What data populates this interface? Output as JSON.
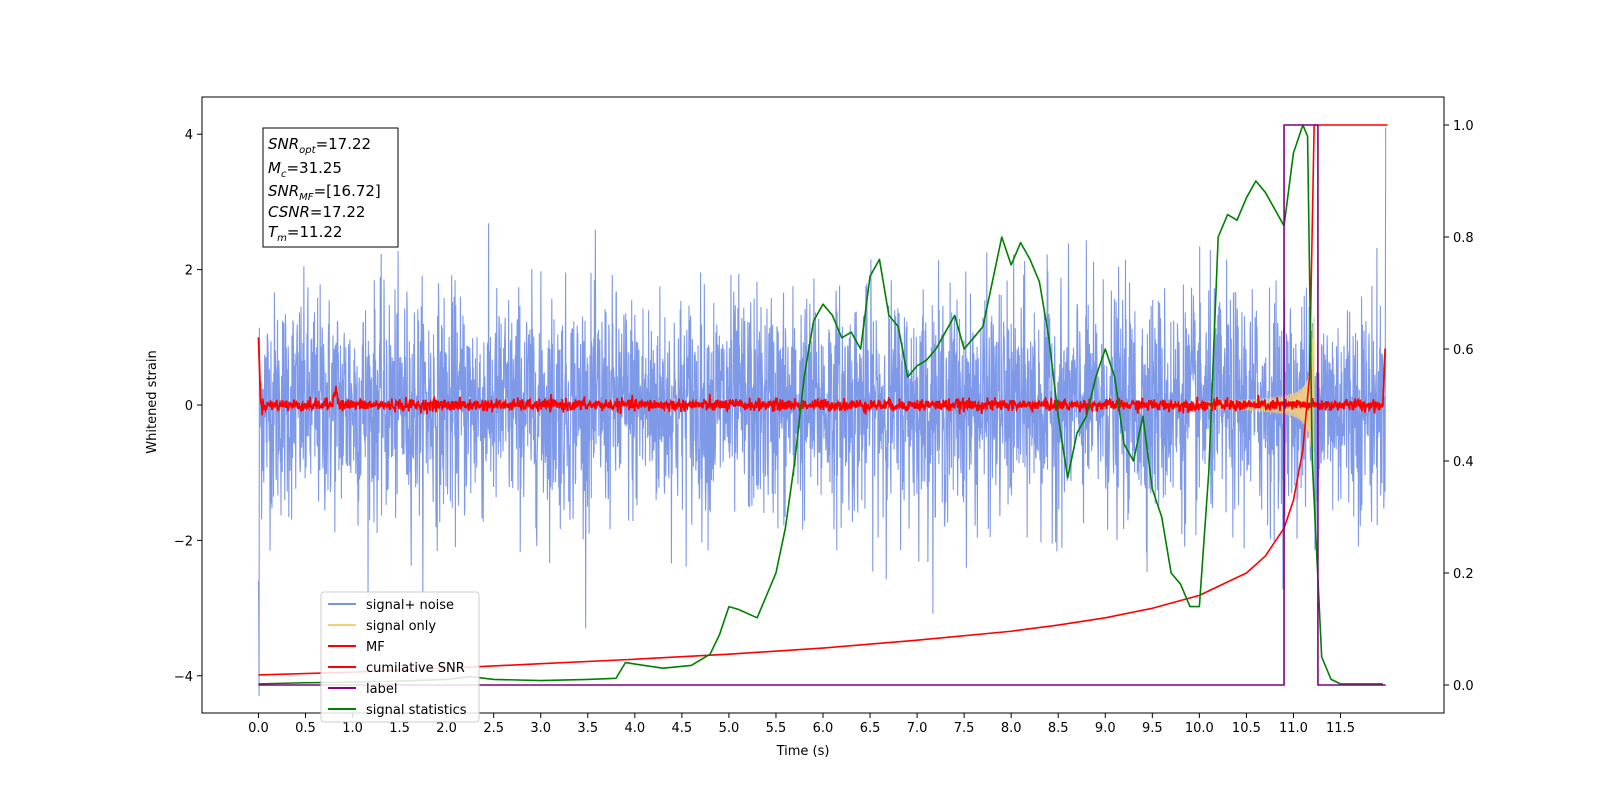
{
  "chart_data": {
    "type": "line",
    "xlabel": "Time (s)",
    "ylabel": "Whitened strain",
    "xlim": [
      -0.6,
      12.6
    ],
    "ylim": [
      -4.55,
      4.55
    ],
    "y2lim": [
      -0.05,
      1.05
    ],
    "grid": false,
    "legend_position": "lower-left",
    "x_ticks": [
      "0.0",
      "0.5",
      "1.0",
      "1.5",
      "2.0",
      "2.5",
      "3.0",
      "3.5",
      "4.0",
      "4.5",
      "5.0",
      "5.5",
      "6.0",
      "6.5",
      "7.0",
      "7.5",
      "8.0",
      "8.5",
      "9.0",
      "9.5",
      "10.0",
      "10.5",
      "11.0",
      "11.5"
    ],
    "y_ticks": [
      {
        "value": 4,
        "label": "4"
      },
      {
        "value": 2,
        "label": "2"
      },
      {
        "value": 0,
        "label": "0"
      },
      {
        "value": -2,
        "label": "−2"
      },
      {
        "value": -4,
        "label": "−4"
      }
    ],
    "y2_ticks": [
      "0.0",
      "0.2",
      "0.4",
      "0.6",
      "0.8",
      "1.0"
    ],
    "annotation": {
      "snr_opt": {
        "sym": "SNR",
        "sub": "opt",
        "value": "=17.22"
      },
      "mc": {
        "sym": "M",
        "sub": "c",
        "value": "=31.25"
      },
      "snr_mf": {
        "sym": "SNR",
        "sub": "MF",
        "value": "=[16.72]"
      },
      "csnr": {
        "sym": "CSNR",
        "value": "=17.22"
      },
      "tm": {
        "sym": "T",
        "sub": "m",
        "value": "=11.22"
      }
    },
    "series": [
      {
        "name": "signal+ noise",
        "color": "#7893e8",
        "axis": "left",
        "description": "whitened noisy strain, approx ±2.5 spread over 0–12 s"
      },
      {
        "name": "signal only",
        "color": "#f7cf7b",
        "axis": "left",
        "description": "chirp waveform growing near merger at ~11.2 s"
      },
      {
        "name": "MF",
        "color": "#ff0000",
        "axis": "left",
        "description": "matched filter output, near 0 with edge spikes to ~1"
      },
      {
        "name": "cumilative SNR",
        "color": "#ff0000",
        "axis": "right",
        "x": [
          0.0,
          1,
          2,
          3,
          4,
          5,
          6,
          7,
          8,
          8.5,
          9,
          9.5,
          10,
          10.5,
          10.7,
          10.9,
          11.0,
          11.1,
          11.17,
          11.22,
          11.3,
          12.0
        ],
        "values": [
          0.018,
          0.023,
          0.03,
          0.038,
          0.046,
          0.055,
          0.066,
          0.08,
          0.096,
          0.107,
          0.12,
          0.137,
          0.16,
          0.2,
          0.23,
          0.28,
          0.33,
          0.42,
          0.55,
          1.0,
          1.0,
          1.0
        ]
      },
      {
        "name": "label",
        "color": "#800080",
        "axis": "right",
        "x": [
          0.0,
          10.9,
          10.9,
          11.26,
          11.26,
          11.98
        ],
        "values": [
          0.0,
          0.0,
          1.0,
          1.0,
          0.0,
          0.0
        ]
      },
      {
        "name": "signal statistics",
        "color": "#008000",
        "axis": "right",
        "x": [
          0.0,
          0.5,
          1.0,
          1.5,
          2.0,
          2.25,
          2.5,
          3.0,
          3.5,
          3.8,
          3.9,
          4.1,
          4.3,
          4.6,
          4.8,
          4.9,
          5.0,
          5.1,
          5.3,
          5.5,
          5.6,
          5.7,
          5.8,
          5.9,
          6.0,
          6.1,
          6.2,
          6.3,
          6.4,
          6.5,
          6.6,
          6.7,
          6.8,
          6.9,
          7.0,
          7.1,
          7.2,
          7.3,
          7.4,
          7.5,
          7.6,
          7.7,
          7.8,
          7.9,
          8.0,
          8.1,
          8.2,
          8.3,
          8.4,
          8.5,
          8.6,
          8.7,
          8.8,
          8.9,
          9.0,
          9.1,
          9.2,
          9.3,
          9.4,
          9.5,
          9.6,
          9.7,
          9.8,
          9.9,
          10.0,
          10.1,
          10.2,
          10.3,
          10.4,
          10.5,
          10.6,
          10.7,
          10.8,
          10.9,
          11.0,
          11.1,
          11.15,
          11.2,
          11.3,
          11.4,
          11.5,
          11.6,
          11.7,
          11.8,
          11.9,
          11.95
        ],
        "values": [
          0.002,
          0.004,
          0.005,
          0.007,
          0.01,
          0.015,
          0.01,
          0.008,
          0.01,
          0.012,
          0.04,
          0.035,
          0.03,
          0.035,
          0.055,
          0.09,
          0.14,
          0.135,
          0.12,
          0.2,
          0.28,
          0.4,
          0.55,
          0.65,
          0.68,
          0.66,
          0.62,
          0.63,
          0.6,
          0.73,
          0.76,
          0.66,
          0.64,
          0.55,
          0.57,
          0.58,
          0.6,
          0.63,
          0.66,
          0.6,
          0.62,
          0.64,
          0.72,
          0.8,
          0.75,
          0.79,
          0.76,
          0.72,
          0.62,
          0.48,
          0.37,
          0.45,
          0.48,
          0.55,
          0.6,
          0.55,
          0.43,
          0.4,
          0.48,
          0.35,
          0.3,
          0.2,
          0.18,
          0.14,
          0.14,
          0.38,
          0.8,
          0.84,
          0.83,
          0.87,
          0.9,
          0.88,
          0.85,
          0.82,
          0.95,
          1.0,
          0.98,
          0.4,
          0.05,
          0.01,
          0.002,
          0.002,
          0.002,
          0.002,
          0.002,
          0.002
        ]
      }
    ]
  }
}
